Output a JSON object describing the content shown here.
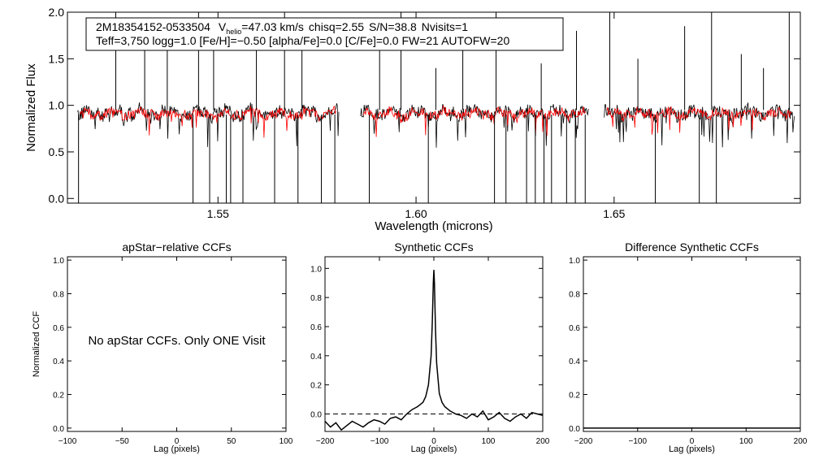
{
  "colors": {
    "observed": "#000000",
    "model": "#ff0000",
    "axis": "#000000",
    "background": "#ffffff"
  },
  "spectrum": {
    "info_line1": {
      "star": "2M18354152-0533504",
      "v_sym": "V",
      "v_sub": "helio",
      "v_val": "=47.03 km/s",
      "chisq": "chisq=2.55",
      "sn": "S/N=38.8",
      "nvisits": "Nvisits=1"
    },
    "info_line2": "Teff=3,750 logg=1.0 [Fe/H]=−0.50 [alpha/Fe]=0.0 [C/Fe]=0.0 FW=21 AUTOFW=20"
  },
  "panels": {
    "apstar": {
      "message": "No apStar CCFs.  Only ONE Visit"
    }
  },
  "chart_data": [
    {
      "id": "spectrum",
      "type": "line",
      "title": "",
      "xlabel": "Wavelength (microns)",
      "ylabel": "Normalized Flux",
      "xlim": [
        1.512,
        1.697
      ],
      "ylim": [
        -0.05,
        2.0
      ],
      "xticks": [
        1.55,
        1.6,
        1.65
      ],
      "xtick_labels": [
        "1.55",
        "1.60",
        "1.65"
      ],
      "yticks": [
        0.0,
        0.5,
        1.0,
        1.5,
        2.0
      ],
      "ytick_labels": [
        "0.0",
        "0.5",
        "1.0",
        "1.5",
        "2.0"
      ],
      "detectors": [
        [
          1.5145,
          1.5805
        ],
        [
          1.586,
          1.6435
        ],
        [
          1.6475,
          1.6955
        ]
      ],
      "series": [
        {
          "name": "observed spectrum",
          "color": "#000000",
          "baseline": 0.92,
          "noise": 0.07
        },
        {
          "name": "best-fit model",
          "color": "#ff0000",
          "baseline": 0.91,
          "noise": 0.05
        }
      ],
      "dropout_wavelengths": [
        1.5148,
        1.5437,
        1.5479,
        1.5521,
        1.5532,
        1.5563,
        1.5643,
        1.5702,
        1.5761,
        1.5795,
        1.5882,
        1.6031,
        1.6198,
        1.6227,
        1.6279,
        1.6301,
        1.6323,
        1.6342,
        1.638,
        1.6402,
        1.6427,
        1.6604,
        1.6715,
        1.6758
      ],
      "spike_wavelengths": [
        1.5242,
        1.5315,
        1.5372,
        1.5451,
        1.5489,
        1.5597,
        1.5668,
        1.5712,
        1.5908,
        1.5962,
        1.605,
        1.6118,
        1.6202,
        1.6316,
        1.6405,
        1.6489,
        1.656,
        1.6678,
        1.6746,
        1.6821,
        1.6877,
        1.6942
      ]
    },
    {
      "id": "apstar",
      "type": "line",
      "title": "apStar−relative CCFs",
      "xlabel": "Lag (pixels)",
      "ylabel": "Normalized CCF",
      "xlim": [
        -100,
        100
      ],
      "ylim": [
        -0.02,
        1.02
      ],
      "xticks": [
        -100,
        -50,
        0,
        50,
        100
      ],
      "xtick_labels": [
        "−100",
        "−50",
        "0",
        "50",
        "100"
      ],
      "yticks": [
        0.0,
        0.2,
        0.4,
        0.6,
        0.8,
        1.0
      ],
      "ytick_labels": [
        "0.0",
        "0.2",
        "0.4",
        "0.6",
        "0.8",
        "1.0"
      ],
      "series": []
    },
    {
      "id": "synthetic",
      "type": "line",
      "title": "Synthetic CCFs",
      "xlabel": "Lag (pixels)",
      "ylabel": "",
      "xlim": [
        -200,
        200
      ],
      "ylim": [
        -0.12,
        1.08
      ],
      "xticks": [
        -200,
        -100,
        0,
        100,
        200
      ],
      "xtick_labels": [
        "−200",
        "−100",
        "0",
        "100",
        "200"
      ],
      "yticks": [
        0.0,
        0.2,
        0.4,
        0.6,
        0.8,
        1.0
      ],
      "ytick_labels": [
        "0.0",
        "0.2",
        "0.4",
        "0.6",
        "0.8",
        "1.0"
      ],
      "zero_line": true,
      "series": [
        {
          "name": "synthetic CCF",
          "x": [
            -200,
            -190,
            -180,
            -170,
            -160,
            -150,
            -140,
            -130,
            -120,
            -110,
            -100,
            -90,
            -80,
            -70,
            -60,
            -50,
            -40,
            -30,
            -20,
            -15,
            -10,
            -5,
            -3,
            -1,
            0,
            1,
            3,
            5,
            10,
            15,
            20,
            30,
            40,
            50,
            60,
            70,
            80,
            90,
            100,
            110,
            120,
            130,
            140,
            150,
            160,
            170,
            180,
            190,
            200
          ],
          "y": [
            -0.05,
            -0.09,
            -0.06,
            -0.11,
            -0.08,
            -0.05,
            -0.07,
            -0.09,
            -0.06,
            -0.04,
            -0.05,
            -0.07,
            -0.03,
            -0.02,
            -0.04,
            0.0,
            0.03,
            0.05,
            0.08,
            0.12,
            0.2,
            0.4,
            0.62,
            0.9,
            0.99,
            0.9,
            0.58,
            0.35,
            0.14,
            0.08,
            0.05,
            0.02,
            0.0,
            -0.01,
            -0.03,
            0.0,
            -0.02,
            0.02,
            -0.04,
            -0.02,
            0.01,
            -0.03,
            -0.05,
            -0.02,
            0.0,
            -0.03,
            0.01,
            0.0,
            -0.01
          ]
        }
      ]
    },
    {
      "id": "difference",
      "type": "line",
      "title": "Difference Synthetic CCFs",
      "xlabel": "Lag (pixels)",
      "ylabel": "",
      "xlim": [
        -200,
        200
      ],
      "ylim": [
        -0.02,
        1.02
      ],
      "xticks": [
        -200,
        -100,
        0,
        100,
        200
      ],
      "xtick_labels": [
        "−200",
        "−100",
        "0",
        "100",
        "200"
      ],
      "yticks": [
        0.0,
        0.2,
        0.4,
        0.6,
        0.8,
        1.0
      ],
      "ytick_labels": [
        "0.0",
        "0.2",
        "0.4",
        "0.6",
        "0.8",
        "1.0"
      ],
      "series": [
        {
          "name": "difference CCF",
          "x": [
            -200,
            200
          ],
          "y": [
            0.0,
            0.0
          ]
        }
      ]
    }
  ]
}
